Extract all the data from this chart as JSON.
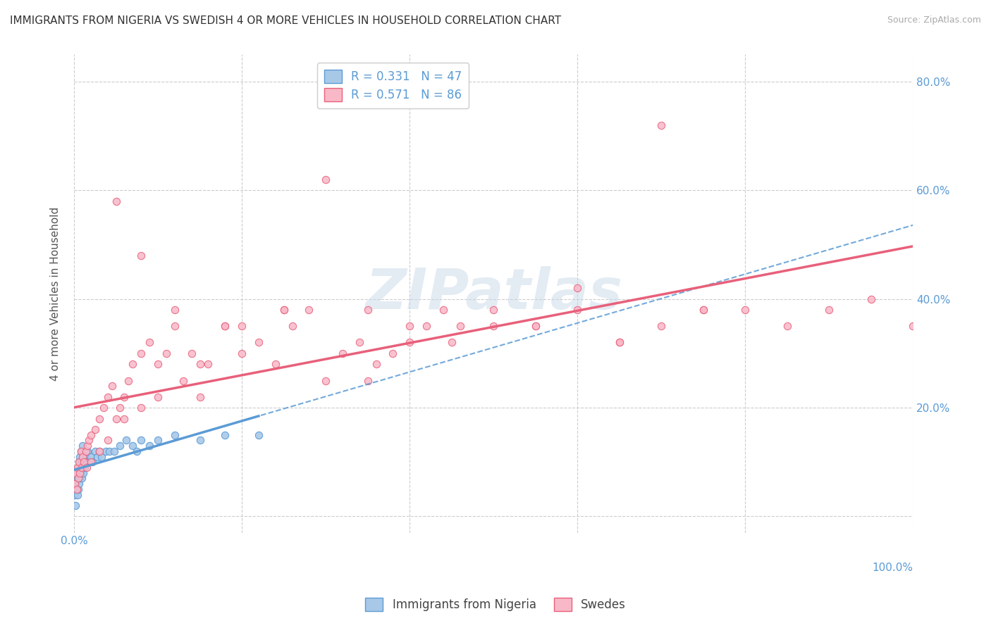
{
  "title": "IMMIGRANTS FROM NIGERIA VS SWEDISH 4 OR MORE VEHICLES IN HOUSEHOLD CORRELATION CHART",
  "source": "Source: ZipAtlas.com",
  "ylabel": "4 or more Vehicles in Household",
  "color_nigeria": "#a8c8e8",
  "color_nigeria_edge": "#5b9bd5",
  "color_swedes": "#f9b8c8",
  "color_swedes_edge": "#e8607a",
  "color_nigeria_line": "#5b9bd5",
  "color_swedes_line": "#e8607a",
  "color_axis": "#5b9bd5",
  "watermark_color": "#c8d8e8",
  "legend1_label": "R = 0.331   N = 47",
  "legend2_label": "R = 0.571   N = 86",
  "legend_series1": "Immigrants from Nigeria",
  "legend_series2": "Swedes",
  "xmin": 0.0,
  "xmax": 1.0,
  "ymin": -0.03,
  "ymax": 0.85,
  "nigeria_scatter_x": [
    0.001,
    0.002,
    0.002,
    0.003,
    0.003,
    0.004,
    0.004,
    0.005,
    0.005,
    0.006,
    0.006,
    0.007,
    0.007,
    0.008,
    0.008,
    0.009,
    0.009,
    0.01,
    0.01,
    0.011,
    0.011,
    0.012,
    0.013,
    0.014,
    0.015,
    0.016,
    0.018,
    0.02,
    0.022,
    0.025,
    0.028,
    0.03,
    0.033,
    0.038,
    0.042,
    0.048,
    0.055,
    0.062,
    0.07,
    0.075,
    0.08,
    0.09,
    0.1,
    0.12,
    0.15,
    0.18,
    0.22
  ],
  "nigeria_scatter_y": [
    0.04,
    0.06,
    0.02,
    0.05,
    0.08,
    0.04,
    0.07,
    0.05,
    0.09,
    0.06,
    0.1,
    0.07,
    0.11,
    0.08,
    0.12,
    0.07,
    0.1,
    0.09,
    0.13,
    0.08,
    0.11,
    0.1,
    0.09,
    0.11,
    0.1,
    0.12,
    0.1,
    0.11,
    0.1,
    0.12,
    0.11,
    0.12,
    0.11,
    0.12,
    0.12,
    0.12,
    0.13,
    0.14,
    0.13,
    0.12,
    0.14,
    0.13,
    0.14,
    0.15,
    0.14,
    0.15,
    0.15
  ],
  "swedes_scatter_x": [
    0.001,
    0.002,
    0.003,
    0.004,
    0.005,
    0.006,
    0.007,
    0.008,
    0.009,
    0.01,
    0.012,
    0.014,
    0.016,
    0.018,
    0.02,
    0.025,
    0.03,
    0.035,
    0.04,
    0.045,
    0.05,
    0.055,
    0.06,
    0.065,
    0.07,
    0.08,
    0.09,
    0.1,
    0.11,
    0.12,
    0.13,
    0.14,
    0.15,
    0.16,
    0.18,
    0.2,
    0.22,
    0.24,
    0.26,
    0.28,
    0.3,
    0.32,
    0.34,
    0.36,
    0.38,
    0.4,
    0.42,
    0.44,
    0.46,
    0.5,
    0.55,
    0.6,
    0.65,
    0.7,
    0.75,
    0.8,
    0.85,
    0.9,
    0.95,
    1.0,
    0.05,
    0.08,
    0.12,
    0.18,
    0.25,
    0.35,
    0.45,
    0.55,
    0.65,
    0.75,
    0.3,
    0.2,
    0.15,
    0.1,
    0.08,
    0.06,
    0.04,
    0.03,
    0.02,
    0.015,
    0.25,
    0.4,
    0.6,
    0.5,
    0.35,
    0.7
  ],
  "swedes_scatter_y": [
    0.06,
    0.08,
    0.05,
    0.09,
    0.07,
    0.1,
    0.08,
    0.12,
    0.09,
    0.11,
    0.1,
    0.12,
    0.13,
    0.14,
    0.15,
    0.16,
    0.18,
    0.2,
    0.22,
    0.24,
    0.18,
    0.2,
    0.22,
    0.25,
    0.28,
    0.3,
    0.32,
    0.28,
    0.3,
    0.35,
    0.25,
    0.3,
    0.22,
    0.28,
    0.35,
    0.3,
    0.32,
    0.28,
    0.35,
    0.38,
    0.25,
    0.3,
    0.32,
    0.28,
    0.3,
    0.32,
    0.35,
    0.38,
    0.35,
    0.38,
    0.35,
    0.38,
    0.32,
    0.35,
    0.38,
    0.38,
    0.35,
    0.38,
    0.4,
    0.35,
    0.58,
    0.48,
    0.38,
    0.35,
    0.38,
    0.38,
    0.32,
    0.35,
    0.32,
    0.38,
    0.62,
    0.35,
    0.28,
    0.22,
    0.2,
    0.18,
    0.14,
    0.12,
    0.1,
    0.09,
    0.38,
    0.35,
    0.42,
    0.35,
    0.25,
    0.72
  ],
  "ytick_positions": [
    0.0,
    0.2,
    0.4,
    0.6,
    0.8
  ],
  "ytick_labels": [
    "",
    "20.0%",
    "40.0%",
    "60.0%",
    "80.0%"
  ],
  "xtick_positions": [
    0.0,
    0.2,
    0.4,
    0.6,
    0.8,
    1.0
  ],
  "xtick_labels_left": [
    "0.0%",
    "",
    "",
    "",
    "",
    ""
  ],
  "xtick_labels_right": [
    "",
    "",
    "",
    "",
    "",
    "100.0%"
  ],
  "nigeria_line_start_x": 0.0,
  "nigeria_line_end_x": 1.0,
  "swedes_line_start_x": 0.0,
  "swedes_line_end_x": 1.0
}
